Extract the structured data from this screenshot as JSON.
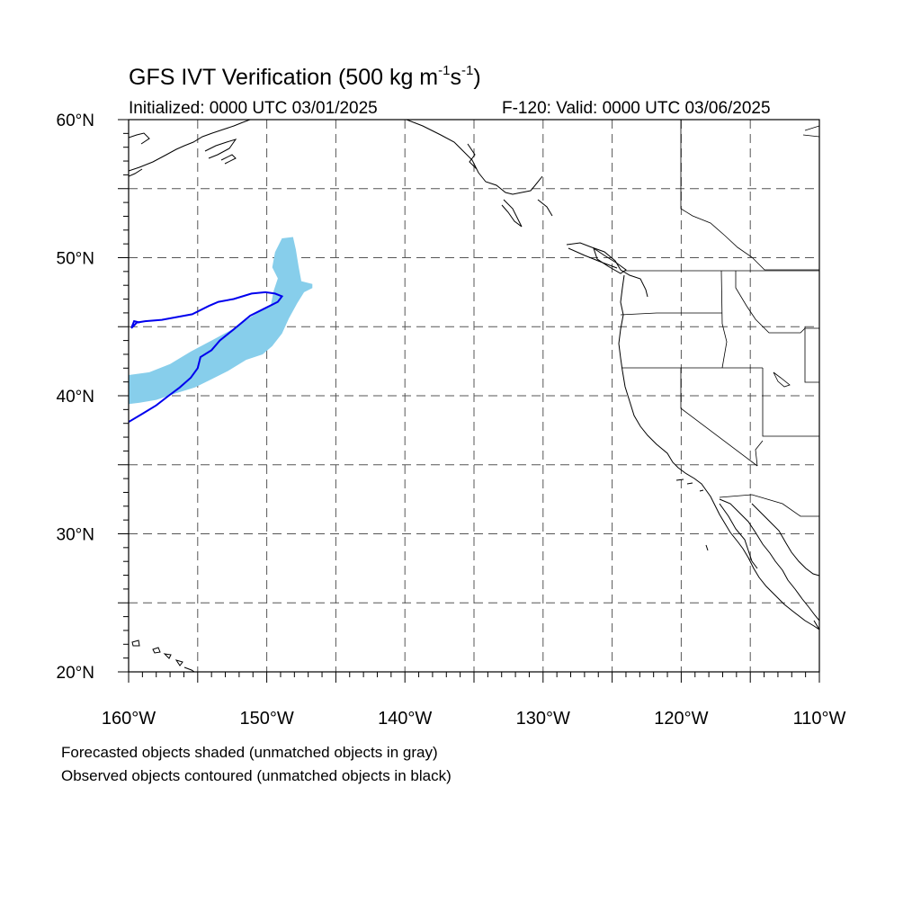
{
  "header": {
    "title_main": "GFS IVT Verification (500 kg m",
    "title_exp1": "-1",
    "title_mid": "s",
    "title_exp2": "-1",
    "title_end": ")",
    "initialized": "Initialized: 0000 UTC 03/01/2025",
    "valid": "F-120: Valid: 0000 UTC 03/06/2025"
  },
  "footer": {
    "forecast_note": "Forecasted objects shaded (unmatched objects in gray)",
    "observed_note": "Observed objects contoured (unmatched objects in black)"
  },
  "map": {
    "projection": "cylindrical equidistant",
    "lon_range": [
      -160,
      -110
    ],
    "lat_range": [
      20,
      60
    ],
    "grid": "dashed",
    "grid_lon_step": 5,
    "grid_lat_step": 5,
    "lon_labels": [
      {
        "lon": -160,
        "text": "160°W"
      },
      {
        "lon": -150,
        "text": "150°W"
      },
      {
        "lon": -140,
        "text": "140°W"
      },
      {
        "lon": -130,
        "text": "130°W"
      },
      {
        "lon": -120,
        "text": "120°W"
      },
      {
        "lon": -110,
        "text": "110°W"
      }
    ],
    "lat_labels": [
      {
        "lat": 60,
        "text": "60°N"
      },
      {
        "lat": 50,
        "text": "50°N"
      },
      {
        "lat": 40,
        "text": "40°N"
      },
      {
        "lat": 30,
        "text": "30°N"
      },
      {
        "lat": 20,
        "text": "20°N"
      }
    ],
    "colors": {
      "forecast_fill": "#87ceeb",
      "observed_contour": "#0000ee",
      "coastline": "#000000",
      "grid": "#555555"
    },
    "forecast_object": [
      [
        -160,
        41.5
      ],
      [
        -158.5,
        41.7
      ],
      [
        -157,
        42.3
      ],
      [
        -155.5,
        43.2
      ],
      [
        -154,
        44.0
      ],
      [
        -152.5,
        44.8
      ],
      [
        -151,
        45.8
      ],
      [
        -149.7,
        46.6
      ],
      [
        -149.5,
        47.6
      ],
      [
        -149.2,
        48.5
      ],
      [
        -149.6,
        49.3
      ],
      [
        -149.4,
        50.4
      ],
      [
        -148.9,
        51.4
      ],
      [
        -148.1,
        51.5
      ],
      [
        -147.9,
        50.6
      ],
      [
        -147.7,
        49.4
      ],
      [
        -147.5,
        48.3
      ],
      [
        -146.7,
        48.1
      ],
      [
        -146.7,
        47.8
      ],
      [
        -147.3,
        47.5
      ],
      [
        -147.8,
        46.7
      ],
      [
        -148.4,
        45.6
      ],
      [
        -148.9,
        44.5
      ],
      [
        -149.6,
        43.6
      ],
      [
        -150.3,
        43.0
      ],
      [
        -151.5,
        42.6
      ],
      [
        -152.8,
        41.8
      ],
      [
        -154.0,
        41.2
      ],
      [
        -155.2,
        40.6
      ],
      [
        -156.5,
        40.2
      ],
      [
        -158.0,
        39.7
      ],
      [
        -159.2,
        39.5
      ],
      [
        -160,
        39.4
      ]
    ],
    "observed_object": [
      [
        -160,
        38.1
      ],
      [
        -159.0,
        38.7
      ],
      [
        -158.0,
        39.3
      ],
      [
        -157.1,
        40.0
      ],
      [
        -156.3,
        40.6
      ],
      [
        -155.5,
        41.3
      ],
      [
        -155.0,
        42.0
      ],
      [
        -154.8,
        42.8
      ],
      [
        -154.0,
        43.3
      ],
      [
        -153.4,
        44.0
      ],
      [
        -152.4,
        44.8
      ],
      [
        -151.2,
        45.8
      ],
      [
        -150.2,
        46.3
      ],
      [
        -149.2,
        46.8
      ],
      [
        -148.9,
        47.2
      ],
      [
        -149.4,
        47.4
      ],
      [
        -150.1,
        47.5
      ],
      [
        -151.1,
        47.4
      ],
      [
        -152.4,
        47.0
      ],
      [
        -153.5,
        46.8
      ],
      [
        -154.2,
        46.5
      ],
      [
        -155.4,
        45.9
      ],
      [
        -156.5,
        45.7
      ],
      [
        -157.6,
        45.5
      ],
      [
        -158.8,
        45.4
      ],
      [
        -159.4,
        45.3
      ],
      [
        -159.8,
        44.9
      ],
      [
        -159.6,
        45.4
      ],
      [
        -159.2,
        45.3
      ]
    ]
  }
}
